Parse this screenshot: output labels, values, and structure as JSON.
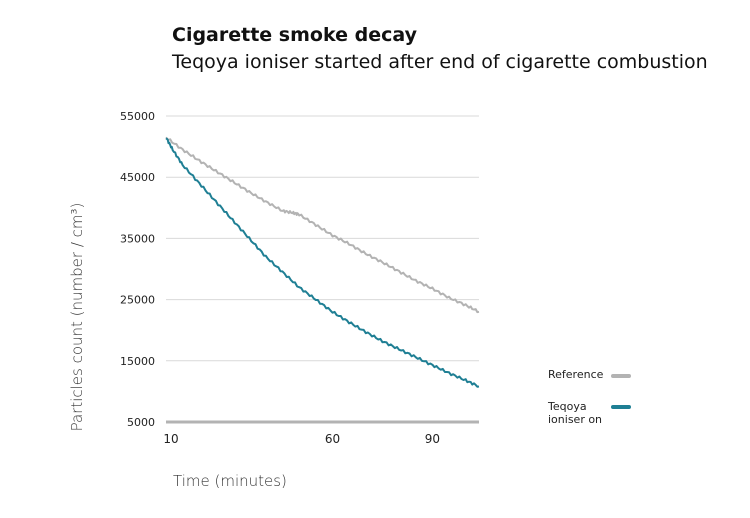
{
  "chart_data": {
    "type": "line",
    "title": "Cigarette smoke decay",
    "subtitle": "Teqoya ioniser started after end of cigarette combustion",
    "xlabel": "Time (minutes)",
    "ylabel": "Particles count (number / cm³)",
    "xlim": [
      10,
      104
    ],
    "ylim": [
      5000,
      55000
    ],
    "x_ticks": [
      10,
      60,
      90
    ],
    "y_ticks": [
      55000,
      45000,
      35000,
      25000,
      15000,
      5000
    ],
    "grid": true,
    "legend_position": "right",
    "series": [
      {
        "name": "Reference",
        "color": "#b3b3b3",
        "x": [
          10,
          15,
          20,
          25,
          30,
          35,
          40,
          45,
          48,
          50,
          55,
          60,
          65,
          70,
          75,
          80,
          85,
          90,
          95,
          100,
          104
        ],
        "y": [
          51500,
          49500,
          47700,
          46000,
          44300,
          42600,
          41000,
          39500,
          39200,
          38900,
          37200,
          35500,
          34100,
          32500,
          31100,
          29600,
          28100,
          26800,
          25300,
          24100,
          23000
        ]
      },
      {
        "name": "Teqoya ioniser on",
        "color": "#1f7f94",
        "x": [
          10,
          12,
          15,
          20,
          25,
          30,
          35,
          40,
          45,
          50,
          55,
          60,
          65,
          70,
          75,
          80,
          85,
          90,
          95,
          100,
          104
        ],
        "y": [
          51500,
          49500,
          47000,
          44000,
          41000,
          38000,
          35000,
          32000,
          29500,
          27000,
          25000,
          23000,
          21300,
          19700,
          18200,
          16900,
          15600,
          14300,
          13000,
          11800,
          10800
        ]
      }
    ]
  }
}
